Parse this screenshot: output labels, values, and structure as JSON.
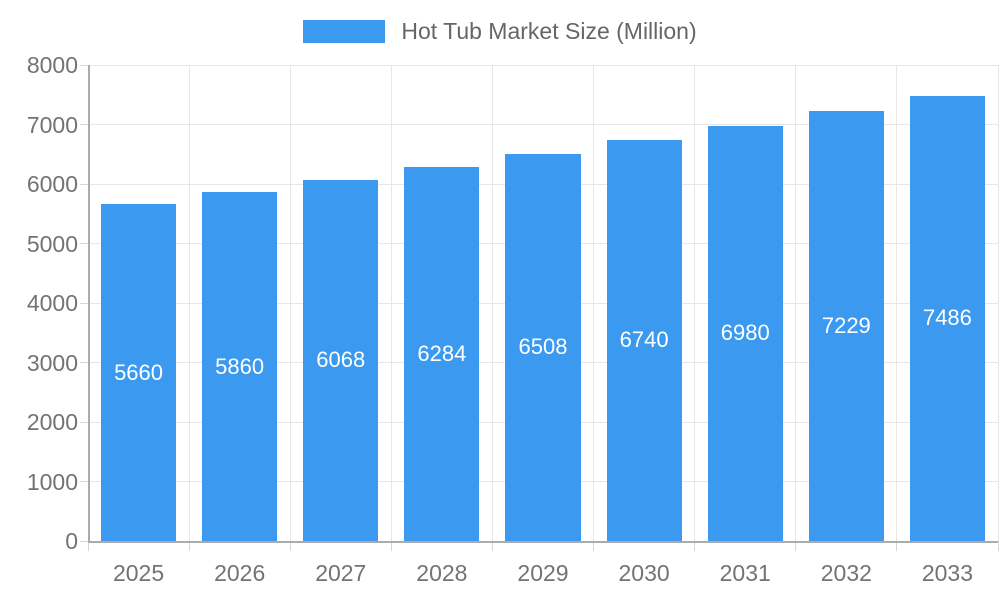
{
  "chart_data": {
    "type": "bar",
    "title": "Hot Tub Market Size (Million)",
    "categories": [
      "2025",
      "2026",
      "2027",
      "2028",
      "2029",
      "2030",
      "2031",
      "2032",
      "2033"
    ],
    "values": [
      5660,
      5860,
      6068,
      6284,
      6508,
      6740,
      6980,
      7229,
      7486
    ],
    "value_labels": [
      "5660",
      "5860",
      "6068",
      "6284",
      "6508",
      "6740",
      "6980",
      "7229",
      "7486"
    ],
    "y_ticks": [
      0,
      1000,
      2000,
      3000,
      4000,
      5000,
      6000,
      7000,
      8000
    ],
    "y_tick_labels": [
      "0",
      "1000",
      "2000",
      "3000",
      "4000",
      "5000",
      "6000",
      "7000",
      "8000"
    ],
    "ylim": [
      0,
      8000
    ],
    "xlabel": "",
    "ylabel": "",
    "grid": true,
    "legend_position": "top"
  },
  "colors": {
    "bar": "#3b9af0",
    "grid": "#e6e6e6",
    "axis": "#ababab",
    "tick": "#d6d6d6",
    "tick_label": "#737373",
    "title": "#666666",
    "value_label": "#ffffff",
    "background": "#ffffff"
  }
}
